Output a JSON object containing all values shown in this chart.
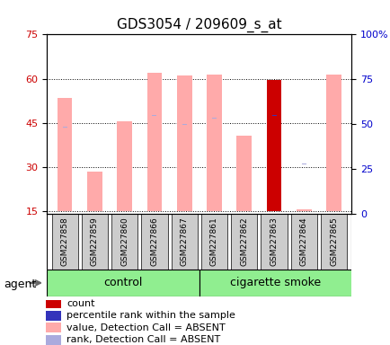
{
  "title": "GDS3054 / 209609_s_at",
  "samples": [
    "GSM227858",
    "GSM227859",
    "GSM227860",
    "GSM227866",
    "GSM227867",
    "GSM227861",
    "GSM227862",
    "GSM227863",
    "GSM227864",
    "GSM227865"
  ],
  "groups": [
    "control",
    "control",
    "control",
    "control",
    "control",
    "cigarette smoke",
    "cigarette smoke",
    "cigarette smoke",
    "cigarette smoke",
    "cigarette smoke"
  ],
  "value_bars": [
    53.5,
    28.5,
    45.5,
    62.0,
    61.0,
    61.5,
    40.5,
    59.5,
    15.5,
    61.5
  ],
  "rank_dots": [
    43.5,
    33.0,
    43.0,
    47.5,
    44.5,
    46.5,
    null,
    47.5,
    31.0,
    45.5
  ],
  "bar_colors": [
    "#ffaaaa",
    "#ffaaaa",
    "#ffaaaa",
    "#ffaaaa",
    "#ffaaaa",
    "#ffaaaa",
    "#ffaaaa",
    "#cc0000",
    "#ffaaaa",
    "#ffaaaa"
  ],
  "rank_dot_colors": [
    "#aaaadd",
    "#aaaadd",
    "#aaaadd",
    "#aaaadd",
    "#aaaadd",
    "#aaaadd",
    null,
    "#3333bb",
    "#aaaadd",
    "#aaaadd"
  ],
  "ylim_left": [
    14,
    75
  ],
  "ylim_right": [
    0,
    100
  ],
  "yticks_left": [
    15,
    30,
    45,
    60,
    75
  ],
  "yticks_right": [
    0,
    25,
    50,
    75,
    100
  ],
  "ytick_labels_right": [
    "0",
    "25",
    "50",
    "75",
    "100%"
  ],
  "bar_width": 0.5,
  "baseline": 15,
  "control_label": "control",
  "smoke_label": "cigarette smoke",
  "agent_label": "agent",
  "legend_items": [
    {
      "color": "#cc0000",
      "label": "count"
    },
    {
      "color": "#3333bb",
      "label": "percentile rank within the sample"
    },
    {
      "color": "#ffaaaa",
      "label": "value, Detection Call = ABSENT"
    },
    {
      "color": "#aaaadd",
      "label": "rank, Detection Call = ABSENT"
    }
  ],
  "title_fontsize": 11,
  "tick_fontsize": 8,
  "legend_fontsize": 8,
  "group_label_fontsize": 9,
  "agent_fontsize": 9
}
